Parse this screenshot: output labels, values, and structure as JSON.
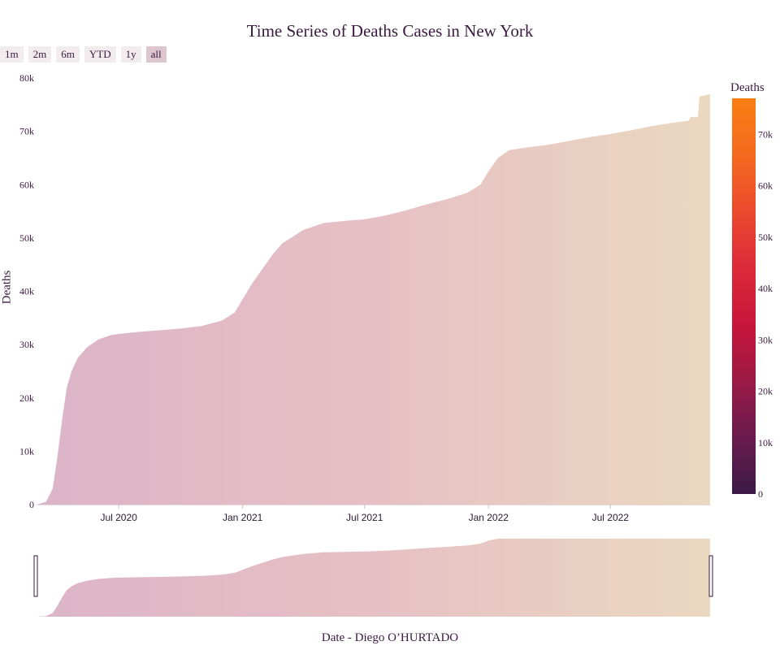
{
  "title": "Time Series of Deaths Cases in New York",
  "range_buttons": [
    "1m",
    "2m",
    "6m",
    "YTD",
    "1y",
    "all"
  ],
  "active_range": "all",
  "colorbar": {
    "title": "Deaths",
    "ticks": [
      "0",
      "10k",
      "20k",
      "30k",
      "40k",
      "50k",
      "60k",
      "70k"
    ],
    "colors": [
      "#3b1a45",
      "#6a1a4f",
      "#9b1a45",
      "#c8153a",
      "#dc2a3a",
      "#eb4a2e",
      "#f46a1e",
      "#fb7e14"
    ]
  },
  "chart_data": {
    "type": "area",
    "title": "Time Series of Deaths Cases in New York",
    "xlabel": "Date - Diego O’HURTADO",
    "ylabel": "Deaths",
    "ylim": [
      0,
      80000
    ],
    "xlim": [
      "2020-03-01",
      "2022-11-26"
    ],
    "y_ticks": [
      "0",
      "10k",
      "20k",
      "30k",
      "40k",
      "50k",
      "60k",
      "70k",
      "80k"
    ],
    "x_ticks": [
      "Jul 2020",
      "Jan 2021",
      "Jul 2021",
      "Jan 2022",
      "Jul 2022"
    ],
    "x_tick_dates": [
      "2020-07-01",
      "2021-01-01",
      "2021-07-01",
      "2022-01-01",
      "2022-07-01"
    ],
    "fill_colors": [
      "#dcb4c8",
      "#e6c0c4",
      "#ebd8c0"
    ],
    "grid": false,
    "rangeslider": true,
    "x": [
      "2020-03-01",
      "2020-03-15",
      "2020-03-25",
      "2020-04-01",
      "2020-04-08",
      "2020-04-15",
      "2020-04-22",
      "2020-05-01",
      "2020-05-15",
      "2020-06-01",
      "2020-06-20",
      "2020-07-01",
      "2020-08-01",
      "2020-09-01",
      "2020-10-01",
      "2020-11-01",
      "2020-12-01",
      "2020-12-20",
      "2021-01-01",
      "2021-01-15",
      "2021-02-01",
      "2021-02-15",
      "2021-03-01",
      "2021-04-01",
      "2021-05-01",
      "2021-06-01",
      "2021-07-01",
      "2021-08-01",
      "2021-09-01",
      "2021-10-01",
      "2021-11-01",
      "2021-12-01",
      "2021-12-20",
      "2022-01-01",
      "2022-01-15",
      "2022-02-01",
      "2022-03-01",
      "2022-04-01",
      "2022-05-01",
      "2022-06-01",
      "2022-07-01",
      "2022-08-01",
      "2022-09-01",
      "2022-10-01",
      "2022-10-25",
      "2022-10-28",
      "2022-11-08",
      "2022-11-10",
      "2022-11-26"
    ],
    "y": [
      0,
      500,
      3000,
      9000,
      16000,
      22000,
      25000,
      27500,
      29500,
      31000,
      31800,
      32000,
      32400,
      32700,
      33000,
      33500,
      34500,
      36000,
      38500,
      41500,
      44500,
      47000,
      49000,
      51500,
      52800,
      53200,
      53500,
      54200,
      55200,
      56300,
      57300,
      58500,
      60000,
      62500,
      65000,
      66500,
      67000,
      67500,
      68200,
      68900,
      69500,
      70200,
      71000,
      71600,
      72000,
      72700,
      72700,
      76500,
      77000
    ]
  }
}
